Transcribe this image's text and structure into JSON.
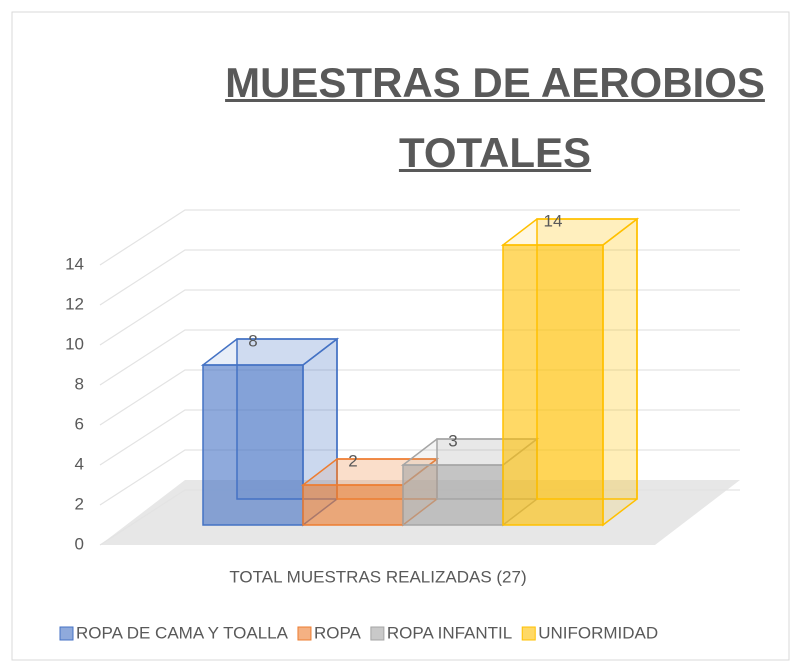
{
  "chart_data": {
    "type": "bar3d",
    "title": "MUESTRAS DE AEROBIOS TOTALES",
    "categories": [
      "TOTAL MUESTRAS REALIZADAS (27)"
    ],
    "series": [
      {
        "name": "ROPA DE CAMA Y TOALLA",
        "color": "#4472c4",
        "values": [
          8
        ]
      },
      {
        "name": "ROPA",
        "color": "#ed7d31",
        "values": [
          2
        ]
      },
      {
        "name": "ROPA INFANTIL",
        "color": "#a5a5a5",
        "values": [
          3
        ]
      },
      {
        "name": "UNIFORMIDAD",
        "color": "#ffc000",
        "values": [
          14
        ]
      }
    ],
    "ylim": [
      0,
      14
    ],
    "yticks": [
      0,
      2,
      4,
      6,
      8,
      10,
      12,
      14
    ],
    "grid": true,
    "legend": "bottom"
  }
}
